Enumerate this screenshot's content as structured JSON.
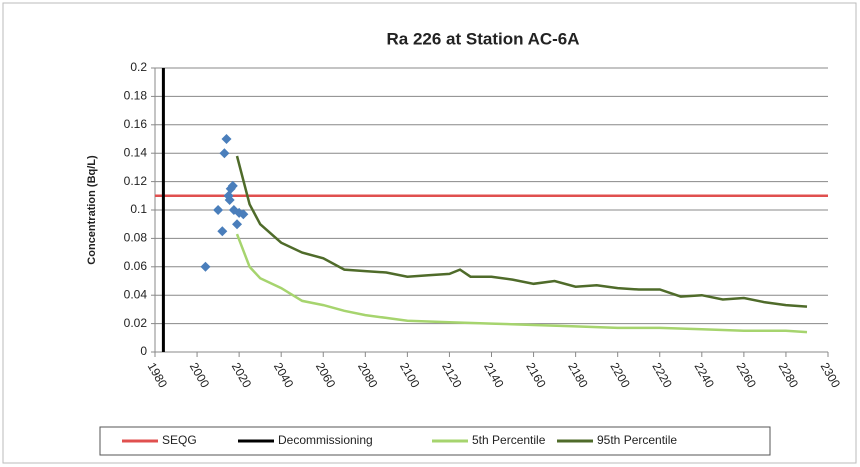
{
  "chart_data": {
    "type": "line",
    "title": "Ra 226 at Station AC-6A",
    "y_label": "Concentration (Bq/L)",
    "xlim": [
      1980,
      2300
    ],
    "xticks": [
      1980,
      2000,
      2020,
      2040,
      2060,
      2080,
      2100,
      2120,
      2140,
      2160,
      2180,
      2200,
      2220,
      2240,
      2260,
      2280,
      2300
    ],
    "ylim": [
      0,
      0.2
    ],
    "yticks": [
      0,
      0.02,
      0.04,
      0.06,
      0.08,
      0.1,
      0.12,
      0.14,
      0.16,
      0.18,
      0.2
    ],
    "grid": true,
    "legend": "bottom",
    "series": [
      {
        "name": "SEQG",
        "color": "#e0504f",
        "x": [
          1980,
          2300
        ],
        "values": [
          0.11,
          0.11
        ]
      },
      {
        "name": "Decommissioning",
        "color": "#000000",
        "x": [
          1984,
          1984
        ],
        "values": [
          0,
          0.2
        ]
      },
      {
        "name": "5th Percentile",
        "color": "#a6d46e",
        "x": [
          2019,
          2025,
          2030,
          2040,
          2050,
          2060,
          2070,
          2080,
          2090,
          2100,
          2120,
          2140,
          2160,
          2180,
          2200,
          2220,
          2240,
          2260,
          2280,
          2290
        ],
        "values": [
          0.083,
          0.06,
          0.052,
          0.045,
          0.036,
          0.033,
          0.029,
          0.026,
          0.024,
          0.022,
          0.021,
          0.02,
          0.019,
          0.018,
          0.017,
          0.017,
          0.016,
          0.015,
          0.015,
          0.014
        ]
      },
      {
        "name": "95th Percentile",
        "color": "#4f6b2a",
        "x": [
          2019,
          2025,
          2030,
          2040,
          2050,
          2060,
          2070,
          2080,
          2090,
          2100,
          2110,
          2120,
          2125,
          2130,
          2140,
          2150,
          2160,
          2170,
          2180,
          2190,
          2200,
          2210,
          2220,
          2230,
          2240,
          2250,
          2260,
          2270,
          2280,
          2290
        ],
        "values": [
          0.138,
          0.104,
          0.09,
          0.077,
          0.07,
          0.066,
          0.058,
          0.057,
          0.056,
          0.053,
          0.054,
          0.055,
          0.058,
          0.053,
          0.053,
          0.051,
          0.048,
          0.05,
          0.046,
          0.047,
          0.045,
          0.044,
          0.044,
          0.039,
          0.04,
          0.037,
          0.038,
          0.035,
          0.033,
          0.032
        ]
      }
    ],
    "points": {
      "color": "#4a7ebb",
      "marker": "diamond",
      "x": [
        2004,
        2010,
        2012,
        2013,
        2014,
        2015,
        2015.5,
        2016,
        2017,
        2017.5,
        2019,
        2020,
        2022
      ],
      "values": [
        0.06,
        0.1,
        0.085,
        0.14,
        0.15,
        0.11,
        0.107,
        0.115,
        0.117,
        0.1,
        0.09,
        0.098,
        0.097
      ]
    }
  }
}
